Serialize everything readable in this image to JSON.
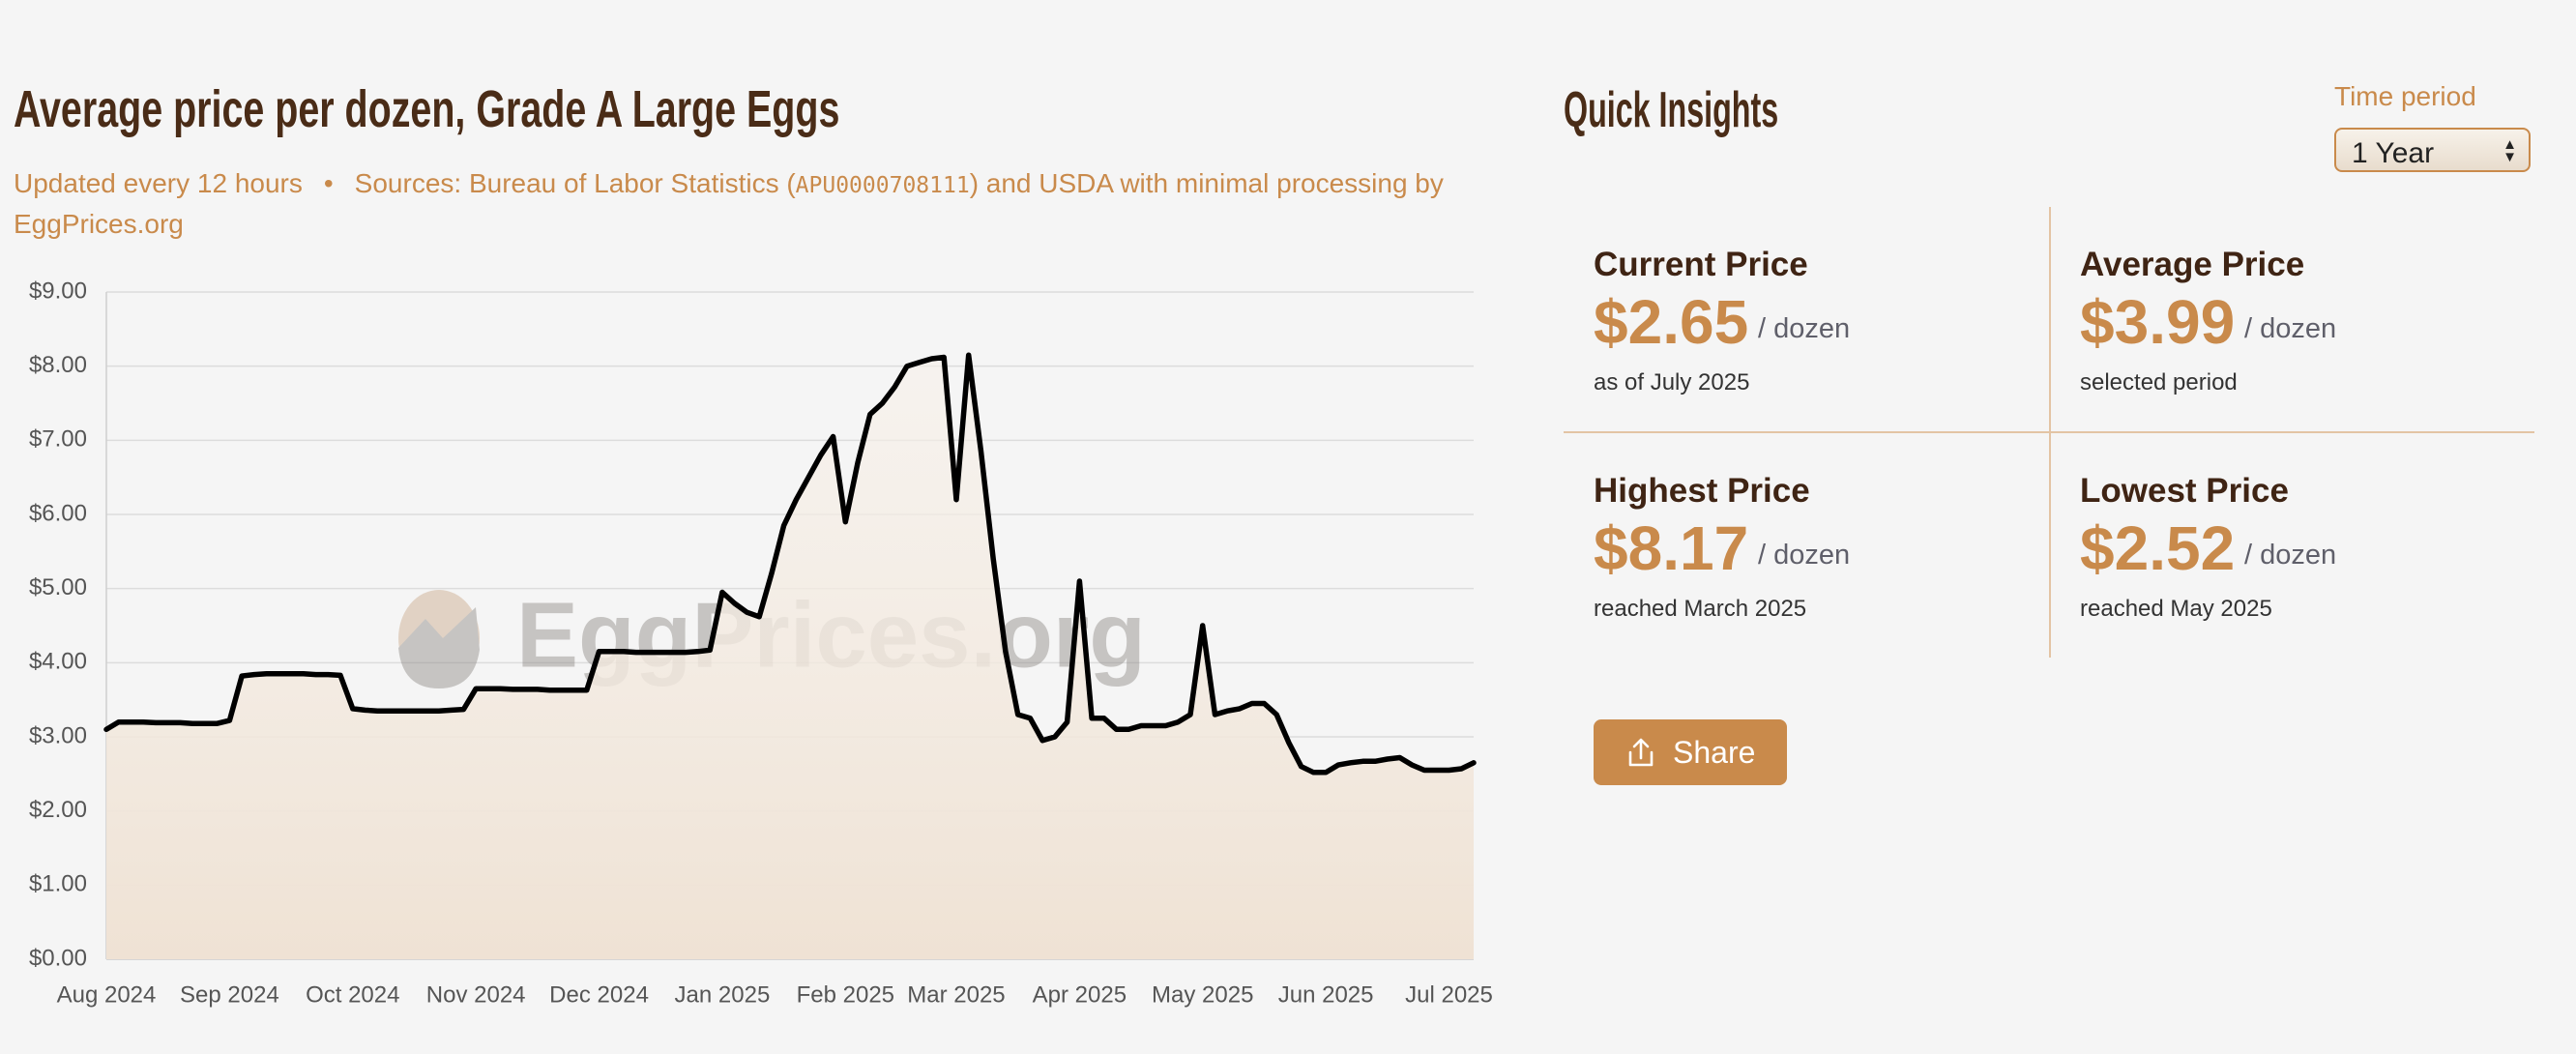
{
  "chart_data": {
    "type": "line",
    "title": "Average price per dozen, Grade A Large Eggs",
    "subtitle": {
      "updated": "Updated every 12 hours",
      "separator": "•",
      "sources": "Sources: Bureau of Labor Statistics (",
      "series_id": "APU0000708111",
      "sources_end": ") and USDA with minimal processing by EggPrices.org"
    },
    "watermark": "EggPrices.org",
    "categories": [
      "Aug 2024",
      null,
      null,
      null,
      null,
      null,
      null,
      null,
      null,
      null,
      "Sep 2024",
      null,
      null,
      null,
      null,
      null,
      null,
      null,
      null,
      null,
      "Oct 2024",
      null,
      null,
      null,
      null,
      null,
      null,
      null,
      null,
      null,
      "Nov 2024",
      null,
      null,
      null,
      null,
      null,
      null,
      null,
      null,
      null,
      "Dec 2024",
      null,
      null,
      null,
      null,
      null,
      null,
      null,
      null,
      null,
      "Jan 2025",
      null,
      null,
      null,
      null,
      null,
      null,
      null,
      null,
      null,
      "Feb 2025",
      null,
      null,
      null,
      null,
      null,
      null,
      null,
      null,
      "Mar 2025",
      null,
      null,
      null,
      null,
      null,
      null,
      null,
      null,
      null,
      "Apr 2025",
      null,
      null,
      null,
      null,
      null,
      null,
      null,
      null,
      null,
      "May 2025",
      null,
      null,
      null,
      null,
      null,
      null,
      null,
      null,
      null,
      "Jun 2025",
      null,
      null,
      null,
      null,
      null,
      null,
      null,
      null,
      null,
      "Jul 2025",
      null,
      null
    ],
    "values": [
      3.1,
      3.2,
      3.2,
      3.2,
      3.19,
      3.19,
      3.19,
      3.18,
      3.18,
      3.18,
      3.22,
      3.82,
      3.84,
      3.85,
      3.85,
      3.85,
      3.85,
      3.84,
      3.84,
      3.83,
      3.38,
      3.36,
      3.35,
      3.35,
      3.35,
      3.35,
      3.35,
      3.35,
      3.36,
      3.37,
      3.65,
      3.65,
      3.65,
      3.64,
      3.64,
      3.64,
      3.63,
      3.63,
      3.63,
      3.63,
      4.15,
      4.15,
      4.15,
      4.14,
      4.14,
      4.14,
      4.14,
      4.14,
      4.15,
      4.17,
      4.95,
      4.8,
      4.68,
      4.62,
      5.2,
      5.85,
      6.2,
      6.5,
      6.8,
      7.05,
      5.9,
      6.7,
      7.35,
      7.5,
      7.72,
      8.0,
      8.05,
      8.1,
      8.12,
      6.2,
      8.15,
      6.85,
      5.4,
      4.15,
      3.3,
      3.25,
      2.95,
      3.0,
      3.2,
      5.1,
      3.25,
      3.25,
      3.1,
      3.1,
      3.15,
      3.15,
      3.15,
      3.2,
      3.3,
      4.5,
      3.3,
      3.35,
      3.38,
      3.45,
      3.45,
      3.3,
      2.92,
      2.6,
      2.52,
      2.52,
      2.62,
      2.65,
      2.67,
      2.67,
      2.7,
      2.72,
      2.62,
      2.55,
      2.55,
      2.55,
      2.57,
      2.65
    ],
    "color": "#000000",
    "area_color": "#efe2d4",
    "ylim": [
      0,
      9
    ],
    "yticks": [
      {
        "value": 0,
        "label": "$0.00"
      },
      {
        "value": 1,
        "label": "$1.00"
      },
      {
        "value": 2,
        "label": "$2.00"
      },
      {
        "value": 3,
        "label": "$3.00"
      },
      {
        "value": 4,
        "label": "$4.00"
      },
      {
        "value": 5,
        "label": "$5.00"
      },
      {
        "value": 6,
        "label": "$6.00"
      },
      {
        "value": 7,
        "label": "$7.00"
      },
      {
        "value": 8,
        "label": "$8.00"
      },
      {
        "value": 9,
        "label": "$9.00"
      }
    ],
    "grid": true
  },
  "insights": {
    "title": "Quick Insights",
    "time_period": {
      "label": "Time period",
      "selected": "1 Year"
    },
    "cards": [
      {
        "title": "Current Price",
        "price": "$2.65",
        "unit": "/ dozen",
        "note": "as of July 2025"
      },
      {
        "title": "Average Price",
        "price": "$3.99",
        "unit": "/ dozen",
        "note": "selected period"
      },
      {
        "title": "Highest Price",
        "price": "$8.17",
        "unit": "/ dozen",
        "note": "reached March 2025"
      },
      {
        "title": "Lowest Price",
        "price": "$2.52",
        "unit": "/ dozen",
        "note": "reached May 2025"
      }
    ],
    "share": "Share"
  }
}
